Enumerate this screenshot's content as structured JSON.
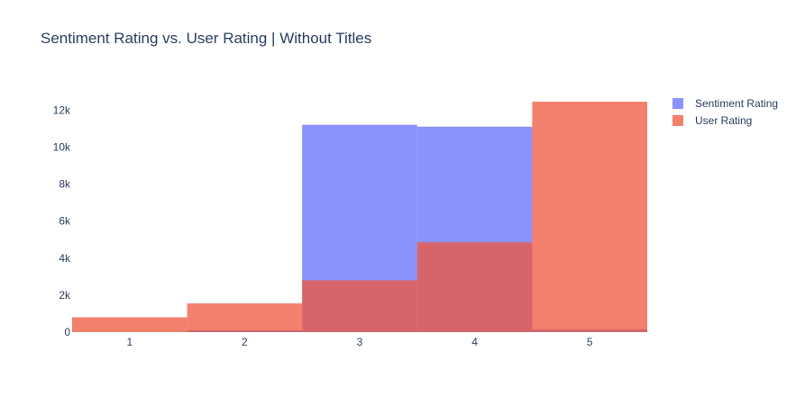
{
  "title": "Sentiment Rating vs. User Rating | Without Titles",
  "chart_data": {
    "type": "bar",
    "barmode": "overlay",
    "categories": [
      "1",
      "2",
      "3",
      "4",
      "5"
    ],
    "series": [
      {
        "name": "Sentiment Rating",
        "color": "#636efa",
        "opacity": 0.75,
        "values": [
          0,
          100,
          11200,
          11100,
          150
        ]
      },
      {
        "name": "User Rating",
        "color": "#ef553b",
        "opacity": 0.75,
        "values": [
          800,
          1550,
          2800,
          4850,
          12450
        ]
      }
    ],
    "y_ticks": [
      {
        "value": 0,
        "label": "0"
      },
      {
        "value": 2000,
        "label": "2k"
      },
      {
        "value": 4000,
        "label": "4k"
      },
      {
        "value": 6000,
        "label": "6k"
      },
      {
        "value": 8000,
        "label": "8k"
      },
      {
        "value": 10000,
        "label": "10k"
      },
      {
        "value": 12000,
        "label": "12k"
      }
    ],
    "ylim": [
      0,
      12450
    ],
    "xlabel": "",
    "ylabel": "",
    "legend_position": "top-right",
    "grid": false
  }
}
